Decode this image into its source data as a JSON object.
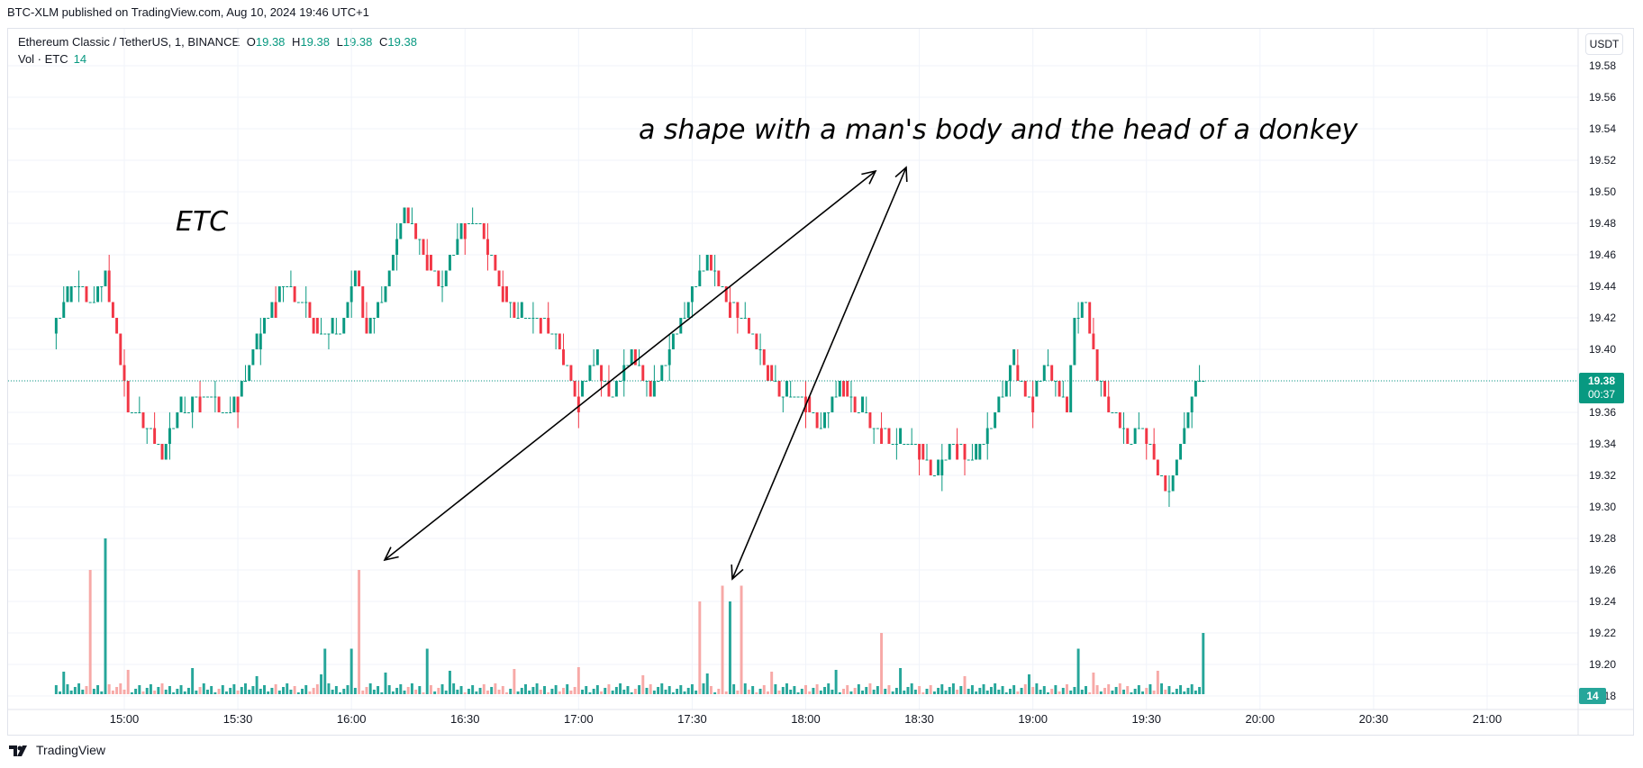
{
  "publisher_line": "BTC-XLM published on TradingView.com, Aug 10, 2024 19:46 UTC+1",
  "legend": {
    "symbol": "Ethereum Classic / TetherUS, 1, BINANCE",
    "o_label": "O",
    "o_value": "19.38",
    "h_label": "H",
    "h_value": "19.38",
    "l_label": "L",
    "l_value": "19.38",
    "c_label": "C",
    "c_value": "19.38",
    "volume_label": "Vol · ETC",
    "volume_value": "14"
  },
  "currency_button": "USDT",
  "footer_brand": "TradingView",
  "colors": {
    "up": "#089981",
    "down": "#f23645",
    "vol_up": "#26a69a",
    "vol_down": "#f7a9a7",
    "grid": "#f0f3fa",
    "text": "#131722"
  },
  "chart_data": {
    "type": "candlestick",
    "price_axis": {
      "ticks": [
        "19.58",
        "19.56",
        "19.54",
        "19.52",
        "19.50",
        "19.48",
        "19.46",
        "19.44",
        "19.42",
        "19.40",
        "19.38",
        "19.36",
        "19.34",
        "19.32",
        "19.30",
        "19.28",
        "19.26",
        "19.24",
        "19.22",
        "19.20",
        "19.18"
      ],
      "ylim": [
        19.18,
        19.58
      ],
      "last_price": "19.38",
      "countdown": "00:37"
    },
    "time_axis": {
      "ticks": [
        "15:00",
        "15:30",
        "16:00",
        "16:30",
        "17:00",
        "17:30",
        "18:00",
        "18:30",
        "19:00",
        "19:30",
        "20:00",
        "20:30",
        "21:00"
      ],
      "start": "14:42",
      "end": "21:40",
      "last_bar": "19:45"
    },
    "volume_last_value": "14",
    "price_path": [
      [
        "14:42",
        19.41
      ],
      [
        "14:47",
        19.44
      ],
      [
        "14:53",
        19.43
      ],
      [
        "14:56",
        19.45
      ],
      [
        "15:00",
        19.39
      ],
      [
        "15:02",
        19.36
      ],
      [
        "15:08",
        19.35
      ],
      [
        "15:11",
        19.33
      ],
      [
        "15:15",
        19.36
      ],
      [
        "15:23",
        19.37
      ],
      [
        "15:28",
        19.36
      ],
      [
        "15:33",
        19.38
      ],
      [
        "15:38",
        19.42
      ],
      [
        "15:43",
        19.44
      ],
      [
        "15:48",
        19.43
      ],
      [
        "15:53",
        19.41
      ],
      [
        "15:58",
        19.41
      ],
      [
        "16:02",
        19.45
      ],
      [
        "16:05",
        19.41
      ],
      [
        "16:10",
        19.44
      ],
      [
        "16:15",
        19.49
      ],
      [
        "16:20",
        19.46
      ],
      [
        "16:25",
        19.44
      ],
      [
        "16:30",
        19.48
      ],
      [
        "16:35",
        19.48
      ],
      [
        "16:40",
        19.44
      ],
      [
        "16:45",
        19.42
      ],
      [
        "16:50",
        19.42
      ],
      [
        "16:55",
        19.41
      ],
      [
        "17:00",
        19.37
      ],
      [
        "17:05",
        19.39
      ],
      [
        "17:10",
        19.37
      ],
      [
        "17:15",
        19.4
      ],
      [
        "17:20",
        19.37
      ],
      [
        "17:25",
        19.4
      ],
      [
        "17:30",
        19.43
      ],
      [
        "17:35",
        19.46
      ],
      [
        "17:40",
        19.43
      ],
      [
        "17:45",
        19.42
      ],
      [
        "17:50",
        19.39
      ],
      [
        "17:55",
        19.37
      ],
      [
        "18:00",
        19.37
      ],
      [
        "18:05",
        19.35
      ],
      [
        "18:10",
        19.38
      ],
      [
        "18:15",
        19.36
      ],
      [
        "18:20",
        19.35
      ],
      [
        "18:25",
        19.34
      ],
      [
        "18:30",
        19.34
      ],
      [
        "18:35",
        19.32
      ],
      [
        "18:40",
        19.34
      ],
      [
        "18:45",
        19.33
      ],
      [
        "18:50",
        19.35
      ],
      [
        "18:55",
        19.39
      ],
      [
        "19:00",
        19.37
      ],
      [
        "19:05",
        19.39
      ],
      [
        "19:10",
        19.36
      ],
      [
        "19:12",
        19.42
      ],
      [
        "19:15",
        19.43
      ],
      [
        "19:18",
        19.38
      ],
      [
        "19:22",
        19.36
      ],
      [
        "19:26",
        19.34
      ],
      [
        "19:30",
        19.35
      ],
      [
        "19:34",
        19.32
      ],
      [
        "19:37",
        19.31
      ],
      [
        "19:40",
        19.34
      ],
      [
        "19:43",
        19.37
      ],
      [
        "19:45",
        19.38
      ]
    ],
    "volume_spikes": [
      [
        "14:51",
        19.26,
        "down"
      ],
      [
        "14:55",
        19.28,
        "up"
      ],
      [
        "15:53",
        19.21,
        "up"
      ],
      [
        "16:00",
        19.21,
        "up"
      ],
      [
        "16:02",
        19.26,
        "down"
      ],
      [
        "16:20",
        19.21,
        "up"
      ],
      [
        "17:32",
        19.24,
        "down"
      ],
      [
        "17:38",
        19.25,
        "down"
      ],
      [
        "17:40",
        19.24,
        "up"
      ],
      [
        "17:43",
        19.25,
        "down"
      ],
      [
        "18:20",
        19.22,
        "down"
      ],
      [
        "19:12",
        19.21,
        "up"
      ],
      [
        "19:45",
        19.22,
        "up"
      ]
    ]
  },
  "annotations": {
    "title_text": "a shape with a man's body and the head of a donkey",
    "ticker_text": "ETC"
  }
}
